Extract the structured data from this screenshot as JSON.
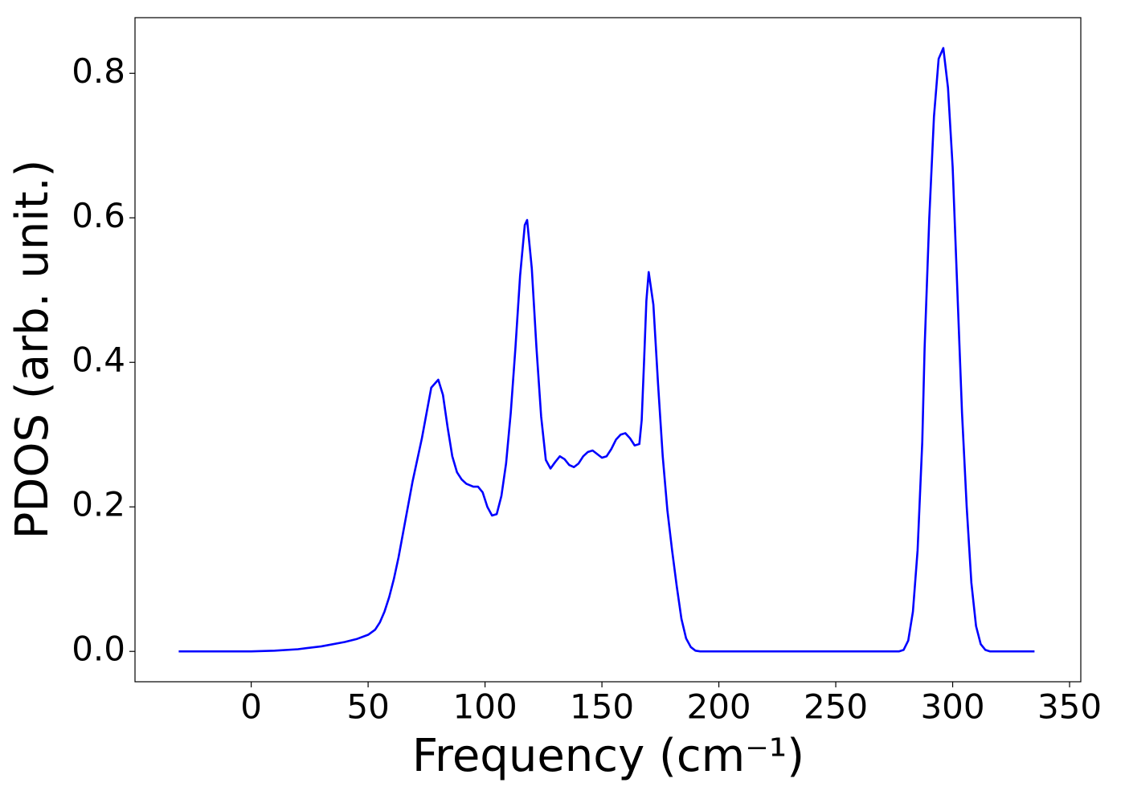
{
  "chart_data": {
    "type": "line",
    "x_label": "Frequency (cm⁻¹)",
    "y_label": "PDOS (arb. unit.)",
    "color": "#0000ff",
    "xlim": [
      -49.7,
      354.8
    ],
    "ylim": [
      -0.042,
      0.877
    ],
    "xticks": [
      0,
      50,
      100,
      150,
      200,
      250,
      300,
      350
    ],
    "yticks": [
      {
        "value": 0,
        "label": "0.0"
      },
      0.2,
      0.4,
      0.6,
      0.8
    ],
    "x": [
      -31,
      0,
      10,
      20,
      30,
      40,
      45,
      50,
      53,
      55,
      57,
      59,
      61,
      63,
      65,
      67,
      69,
      71,
      73,
      75,
      77,
      80,
      82,
      84,
      86,
      88,
      90,
      92,
      95,
      97,
      99,
      101,
      103,
      105,
      107,
      109,
      111,
      113,
      115,
      117,
      118,
      120,
      122,
      124,
      126,
      128,
      130,
      132,
      134,
      136,
      138,
      140,
      142,
      144,
      146,
      148,
      150,
      152,
      154,
      156,
      158,
      160,
      162,
      164,
      166,
      167,
      168,
      169,
      170,
      172,
      174,
      176,
      178,
      180,
      182,
      184,
      186,
      188,
      190,
      192,
      200,
      270,
      277,
      279,
      281,
      283,
      285,
      287,
      288,
      290,
      292,
      294,
      296,
      298,
      300,
      302,
      304,
      306,
      308,
      310,
      312,
      314,
      316,
      335
    ],
    "y": [
      0,
      0,
      0.001,
      0.003,
      0.007,
      0.013,
      0.017,
      0.023,
      0.03,
      0.04,
      0.055,
      0.075,
      0.1,
      0.13,
      0.165,
      0.2,
      0.235,
      0.265,
      0.295,
      0.33,
      0.365,
      0.376,
      0.355,
      0.31,
      0.27,
      0.248,
      0.238,
      0.232,
      0.228,
      0.228,
      0.22,
      0.2,
      0.188,
      0.19,
      0.215,
      0.26,
      0.33,
      0.42,
      0.52,
      0.59,
      0.597,
      0.53,
      0.42,
      0.325,
      0.265,
      0.253,
      0.262,
      0.27,
      0.266,
      0.258,
      0.255,
      0.26,
      0.27,
      0.276,
      0.278,
      0.273,
      0.268,
      0.27,
      0.28,
      0.293,
      0.3,
      0.302,
      0.295,
      0.285,
      0.287,
      0.32,
      0.4,
      0.485,
      0.525,
      0.48,
      0.37,
      0.27,
      0.195,
      0.14,
      0.09,
      0.045,
      0.018,
      0.006,
      0.001,
      0,
      0,
      0,
      0,
      0.002,
      0.015,
      0.055,
      0.14,
      0.29,
      0.42,
      0.6,
      0.74,
      0.82,
      0.835,
      0.78,
      0.67,
      0.5,
      0.33,
      0.2,
      0.095,
      0.035,
      0.01,
      0.002,
      0,
      0
    ]
  }
}
